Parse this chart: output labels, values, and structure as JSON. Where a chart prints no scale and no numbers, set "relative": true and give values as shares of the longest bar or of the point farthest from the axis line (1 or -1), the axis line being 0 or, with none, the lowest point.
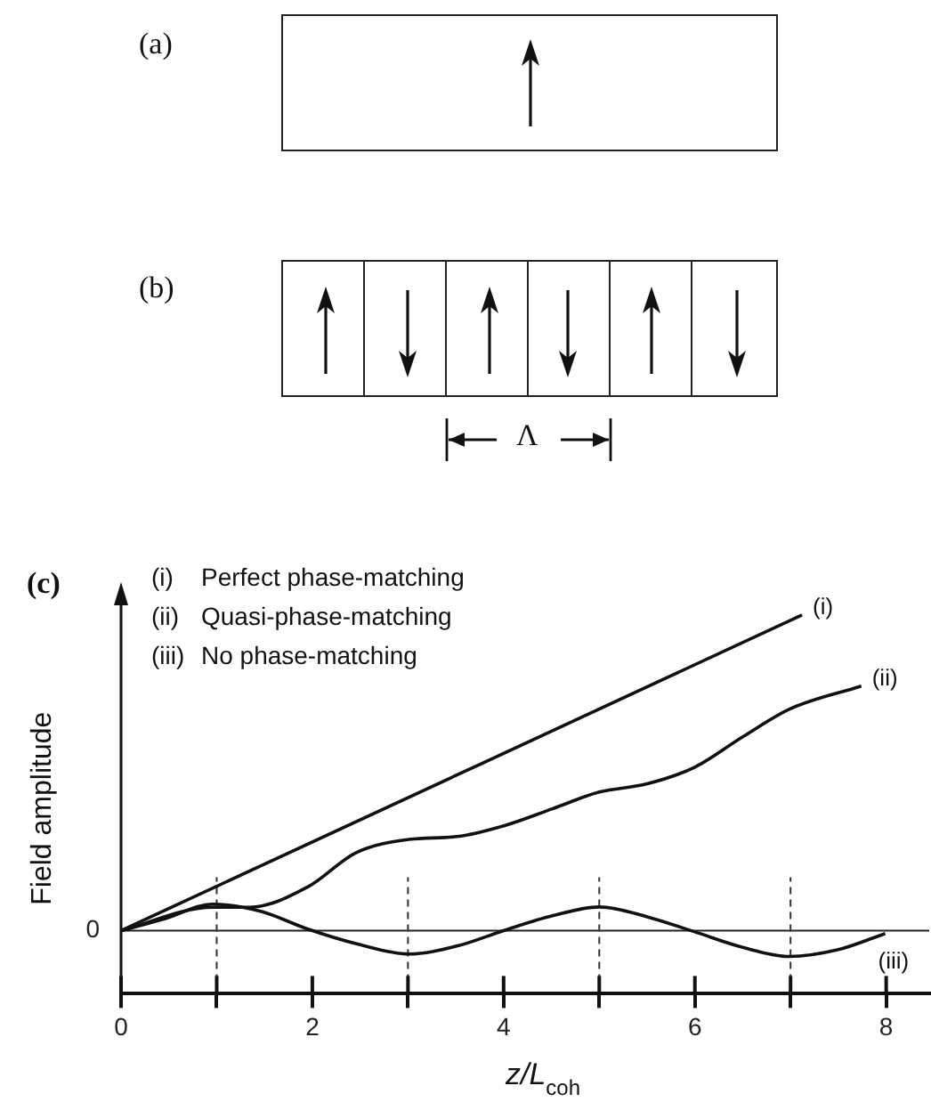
{
  "chart_data": {
    "type": "line",
    "relative": true,
    "xlabel": "z/L$_{coh}$",
    "ylabel": "Field amplitude",
    "annotations": [
      "(a)",
      "(b)",
      "Λ",
      "(c)",
      "(i)   Perfect phase-matching",
      "(ii)  Quasi-phase-matching",
      "(iii) No phase-matching"
    ],
    "xlim": [
      0,
      8.45
    ],
    "xticks": [
      0,
      {
        "value": 1,
        "label": null
      },
      2,
      {
        "value": 3,
        "label": null
      },
      4,
      {
        "value": 5,
        "label": null
      },
      6,
      {
        "value": 7,
        "label": null
      },
      8
    ],
    "legend": false,
    "grid": false,
    "marker": "none",
    "line_style": "solid",
    "ref_lines": [
      {
        "axis": "y",
        "value": 0,
        "label": "0",
        "color": "#222222",
        "line_style": "solid"
      },
      {
        "axis": "x",
        "value": 1,
        "color": "#333333",
        "line_style": "dashed"
      },
      {
        "axis": "x",
        "value": 3,
        "color": "#333333",
        "line_style": "dashed"
      },
      {
        "axis": "x",
        "value": 5,
        "color": "#333333",
        "line_style": "dashed"
      },
      {
        "axis": "x",
        "value": 7,
        "color": "#333333",
        "line_style": "dashed"
      }
    ],
    "series": [
      {
        "name": "(i)",
        "color": "#111111",
        "x": [
          0,
          7.12
        ],
        "values": [
          0,
          1
        ]
      },
      {
        "name": "(ii)",
        "color": "#111111",
        "x": [
          0,
          0.96,
          1.34,
          1.96,
          2.45,
          3.01,
          3.51,
          4.01,
          4.51,
          5.0,
          5.5,
          6.0,
          6.5,
          6.99,
          7.74
        ],
        "values": [
          0,
          0.074,
          0.074,
          0.14,
          0.246,
          0.289,
          0.298,
          0.333,
          0.386,
          0.439,
          0.465,
          0.518,
          0.614,
          0.702,
          0.775
        ]
      },
      {
        "name": "(iii)",
        "color": "#111111",
        "x": [
          0,
          0.47,
          0.96,
          1.46,
          1.96,
          2.49,
          3.01,
          3.51,
          4.0,
          4.51,
          5.0,
          5.5,
          6.0,
          6.5,
          6.99,
          7.49,
          7.99
        ],
        "values": [
          0,
          0.039,
          0.084,
          0.061,
          0.004,
          -0.044,
          -0.074,
          -0.049,
          0,
          0.047,
          0.075,
          0.044,
          -0.004,
          -0.053,
          -0.082,
          -0.061,
          -0.009
        ]
      }
    ]
  }
}
